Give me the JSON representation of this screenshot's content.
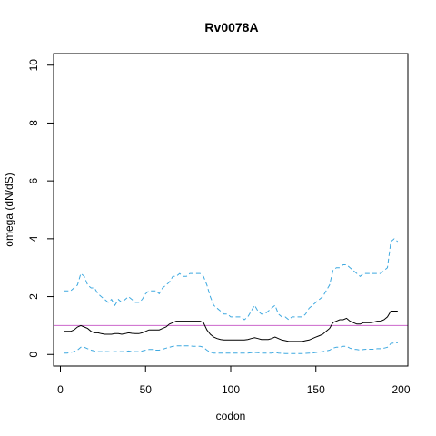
{
  "chart_data": {
    "type": "line",
    "title": "Rv0078A",
    "xlabel": "codon",
    "ylabel": "omega (dN/dS)",
    "xlim": [
      -4,
      204
    ],
    "ylim": [
      -0.4,
      10.4
    ],
    "x_ticks": [
      0,
      50,
      100,
      150,
      200
    ],
    "y_ticks": [
      0,
      2,
      4,
      6,
      8,
      10
    ],
    "x_tick_labels": [
      "0",
      "50",
      "100",
      "150",
      "200"
    ],
    "y_tick_labels": [
      "0",
      "2",
      "4",
      "6",
      "8",
      "10"
    ],
    "grid": false,
    "legend": "none",
    "reference_line": {
      "y": 1,
      "color": "#cc66cc"
    },
    "series": [
      {
        "role": "upper-bound",
        "color": "#3fa9e0",
        "dash": "dashed",
        "points": [
          [
            2,
            2.2
          ],
          [
            4,
            2.2
          ],
          [
            6,
            2.2
          ],
          [
            8,
            2.3
          ],
          [
            10,
            2.4
          ],
          [
            12,
            2.8
          ],
          [
            14,
            2.7
          ],
          [
            16,
            2.4
          ],
          [
            18,
            2.3
          ],
          [
            20,
            2.3
          ],
          [
            22,
            2.1
          ],
          [
            24,
            2.0
          ],
          [
            26,
            1.9
          ],
          [
            28,
            1.8
          ],
          [
            30,
            1.9
          ],
          [
            32,
            1.7
          ],
          [
            34,
            1.9
          ],
          [
            36,
            1.8
          ],
          [
            38,
            1.9
          ],
          [
            40,
            2.0
          ],
          [
            42,
            1.9
          ],
          [
            44,
            1.8
          ],
          [
            46,
            1.8
          ],
          [
            48,
            1.9
          ],
          [
            50,
            2.1
          ],
          [
            52,
            2.2
          ],
          [
            54,
            2.2
          ],
          [
            56,
            2.2
          ],
          [
            58,
            2.1
          ],
          [
            60,
            2.3
          ],
          [
            62,
            2.4
          ],
          [
            64,
            2.5
          ],
          [
            66,
            2.7
          ],
          [
            68,
            2.7
          ],
          [
            70,
            2.8
          ],
          [
            72,
            2.7
          ],
          [
            74,
            2.7
          ],
          [
            76,
            2.8
          ],
          [
            78,
            2.8
          ],
          [
            80,
            2.8
          ],
          [
            82,
            2.8
          ],
          [
            84,
            2.7
          ],
          [
            86,
            2.4
          ],
          [
            88,
            2.0
          ],
          [
            90,
            1.7
          ],
          [
            92,
            1.6
          ],
          [
            94,
            1.5
          ],
          [
            96,
            1.4
          ],
          [
            98,
            1.4
          ],
          [
            100,
            1.3
          ],
          [
            102,
            1.3
          ],
          [
            104,
            1.3
          ],
          [
            106,
            1.3
          ],
          [
            108,
            1.2
          ],
          [
            110,
            1.3
          ],
          [
            112,
            1.5
          ],
          [
            114,
            1.7
          ],
          [
            116,
            1.5
          ],
          [
            118,
            1.4
          ],
          [
            120,
            1.4
          ],
          [
            122,
            1.5
          ],
          [
            124,
            1.6
          ],
          [
            126,
            1.7
          ],
          [
            128,
            1.4
          ],
          [
            130,
            1.3
          ],
          [
            132,
            1.3
          ],
          [
            134,
            1.2
          ],
          [
            136,
            1.3
          ],
          [
            138,
            1.3
          ],
          [
            140,
            1.3
          ],
          [
            142,
            1.3
          ],
          [
            144,
            1.4
          ],
          [
            146,
            1.6
          ],
          [
            148,
            1.7
          ],
          [
            150,
            1.8
          ],
          [
            152,
            1.9
          ],
          [
            154,
            2.0
          ],
          [
            156,
            2.2
          ],
          [
            158,
            2.4
          ],
          [
            160,
            2.9
          ],
          [
            162,
            3.0
          ],
          [
            164,
            3.0
          ],
          [
            166,
            3.1
          ],
          [
            168,
            3.1
          ],
          [
            170,
            3.0
          ],
          [
            172,
            2.9
          ],
          [
            174,
            2.8
          ],
          [
            176,
            2.7
          ],
          [
            178,
            2.8
          ],
          [
            180,
            2.8
          ],
          [
            182,
            2.8
          ],
          [
            184,
            2.8
          ],
          [
            186,
            2.8
          ],
          [
            188,
            2.8
          ],
          [
            190,
            2.9
          ],
          [
            192,
            3.0
          ],
          [
            194,
            3.9
          ],
          [
            196,
            4.0
          ],
          [
            198,
            3.9
          ]
        ]
      },
      {
        "role": "estimate",
        "color": "#000000",
        "dash": "solid",
        "points": [
          [
            2,
            0.8
          ],
          [
            4,
            0.8
          ],
          [
            6,
            0.8
          ],
          [
            8,
            0.85
          ],
          [
            10,
            0.95
          ],
          [
            12,
            1.0
          ],
          [
            14,
            0.95
          ],
          [
            16,
            0.9
          ],
          [
            18,
            0.8
          ],
          [
            20,
            0.75
          ],
          [
            22,
            0.75
          ],
          [
            24,
            0.72
          ],
          [
            26,
            0.7
          ],
          [
            28,
            0.7
          ],
          [
            30,
            0.7
          ],
          [
            32,
            0.72
          ],
          [
            34,
            0.72
          ],
          [
            36,
            0.7
          ],
          [
            38,
            0.72
          ],
          [
            40,
            0.75
          ],
          [
            42,
            0.73
          ],
          [
            44,
            0.72
          ],
          [
            46,
            0.72
          ],
          [
            48,
            0.75
          ],
          [
            50,
            0.8
          ],
          [
            52,
            0.85
          ],
          [
            54,
            0.85
          ],
          [
            56,
            0.85
          ],
          [
            58,
            0.85
          ],
          [
            60,
            0.9
          ],
          [
            62,
            0.95
          ],
          [
            64,
            1.05
          ],
          [
            66,
            1.1
          ],
          [
            68,
            1.15
          ],
          [
            70,
            1.15
          ],
          [
            72,
            1.15
          ],
          [
            74,
            1.15
          ],
          [
            76,
            1.15
          ],
          [
            78,
            1.15
          ],
          [
            80,
            1.15
          ],
          [
            82,
            1.15
          ],
          [
            84,
            1.1
          ],
          [
            86,
            0.85
          ],
          [
            88,
            0.7
          ],
          [
            90,
            0.6
          ],
          [
            92,
            0.55
          ],
          [
            94,
            0.52
          ],
          [
            96,
            0.5
          ],
          [
            98,
            0.5
          ],
          [
            100,
            0.5
          ],
          [
            102,
            0.5
          ],
          [
            104,
            0.5
          ],
          [
            106,
            0.5
          ],
          [
            108,
            0.5
          ],
          [
            110,
            0.52
          ],
          [
            112,
            0.55
          ],
          [
            114,
            0.58
          ],
          [
            116,
            0.55
          ],
          [
            118,
            0.52
          ],
          [
            120,
            0.52
          ],
          [
            122,
            0.52
          ],
          [
            124,
            0.55
          ],
          [
            126,
            0.6
          ],
          [
            128,
            0.55
          ],
          [
            130,
            0.5
          ],
          [
            132,
            0.48
          ],
          [
            134,
            0.45
          ],
          [
            136,
            0.45
          ],
          [
            138,
            0.45
          ],
          [
            140,
            0.45
          ],
          [
            142,
            0.45
          ],
          [
            144,
            0.48
          ],
          [
            146,
            0.5
          ],
          [
            148,
            0.55
          ],
          [
            150,
            0.6
          ],
          [
            152,
            0.65
          ],
          [
            154,
            0.7
          ],
          [
            156,
            0.8
          ],
          [
            158,
            0.9
          ],
          [
            160,
            1.1
          ],
          [
            162,
            1.15
          ],
          [
            164,
            1.2
          ],
          [
            166,
            1.2
          ],
          [
            168,
            1.25
          ],
          [
            170,
            1.15
          ],
          [
            172,
            1.1
          ],
          [
            174,
            1.05
          ],
          [
            176,
            1.05
          ],
          [
            178,
            1.1
          ],
          [
            180,
            1.1
          ],
          [
            182,
            1.1
          ],
          [
            184,
            1.12
          ],
          [
            186,
            1.15
          ],
          [
            188,
            1.15
          ],
          [
            190,
            1.2
          ],
          [
            192,
            1.3
          ],
          [
            194,
            1.5
          ],
          [
            196,
            1.5
          ],
          [
            198,
            1.5
          ]
        ]
      },
      {
        "role": "lower-bound",
        "color": "#3fa9e0",
        "dash": "dashed",
        "points": [
          [
            2,
            0.05
          ],
          [
            4,
            0.05
          ],
          [
            6,
            0.07
          ],
          [
            8,
            0.1
          ],
          [
            10,
            0.15
          ],
          [
            12,
            0.25
          ],
          [
            14,
            0.25
          ],
          [
            16,
            0.2
          ],
          [
            18,
            0.15
          ],
          [
            20,
            0.12
          ],
          [
            22,
            0.1
          ],
          [
            24,
            0.1
          ],
          [
            26,
            0.1
          ],
          [
            28,
            0.1
          ],
          [
            30,
            0.08
          ],
          [
            32,
            0.1
          ],
          [
            34,
            0.1
          ],
          [
            36,
            0.1
          ],
          [
            38,
            0.1
          ],
          [
            40,
            0.12
          ],
          [
            42,
            0.1
          ],
          [
            44,
            0.1
          ],
          [
            46,
            0.1
          ],
          [
            48,
            0.12
          ],
          [
            50,
            0.15
          ],
          [
            52,
            0.17
          ],
          [
            54,
            0.17
          ],
          [
            56,
            0.15
          ],
          [
            58,
            0.15
          ],
          [
            60,
            0.18
          ],
          [
            62,
            0.22
          ],
          [
            64,
            0.25
          ],
          [
            66,
            0.28
          ],
          [
            68,
            0.3
          ],
          [
            70,
            0.3
          ],
          [
            72,
            0.3
          ],
          [
            74,
            0.3
          ],
          [
            76,
            0.3
          ],
          [
            78,
            0.28
          ],
          [
            80,
            0.28
          ],
          [
            82,
            0.28
          ],
          [
            84,
            0.25
          ],
          [
            86,
            0.15
          ],
          [
            88,
            0.08
          ],
          [
            90,
            0.05
          ],
          [
            92,
            0.05
          ],
          [
            94,
            0.05
          ],
          [
            96,
            0.05
          ],
          [
            98,
            0.05
          ],
          [
            100,
            0.05
          ],
          [
            102,
            0.05
          ],
          [
            104,
            0.05
          ],
          [
            106,
            0.05
          ],
          [
            108,
            0.05
          ],
          [
            110,
            0.05
          ],
          [
            112,
            0.06
          ],
          [
            114,
            0.07
          ],
          [
            116,
            0.06
          ],
          [
            118,
            0.05
          ],
          [
            120,
            0.05
          ],
          [
            122,
            0.05
          ],
          [
            124,
            0.05
          ],
          [
            126,
            0.07
          ],
          [
            128,
            0.05
          ],
          [
            130,
            0.04
          ],
          [
            132,
            0.03
          ],
          [
            134,
            0.03
          ],
          [
            136,
            0.03
          ],
          [
            138,
            0.03
          ],
          [
            140,
            0.03
          ],
          [
            142,
            0.03
          ],
          [
            144,
            0.04
          ],
          [
            146,
            0.05
          ],
          [
            148,
            0.05
          ],
          [
            150,
            0.07
          ],
          [
            152,
            0.08
          ],
          [
            154,
            0.1
          ],
          [
            156,
            0.12
          ],
          [
            158,
            0.15
          ],
          [
            160,
            0.22
          ],
          [
            162,
            0.25
          ],
          [
            164,
            0.25
          ],
          [
            166,
            0.28
          ],
          [
            168,
            0.28
          ],
          [
            170,
            0.22
          ],
          [
            172,
            0.18
          ],
          [
            174,
            0.17
          ],
          [
            176,
            0.15
          ],
          [
            178,
            0.17
          ],
          [
            180,
            0.18
          ],
          [
            182,
            0.18
          ],
          [
            184,
            0.18
          ],
          [
            186,
            0.2
          ],
          [
            188,
            0.2
          ],
          [
            190,
            0.22
          ],
          [
            192,
            0.25
          ],
          [
            194,
            0.38
          ],
          [
            196,
            0.4
          ],
          [
            198,
            0.4
          ]
        ]
      }
    ]
  }
}
